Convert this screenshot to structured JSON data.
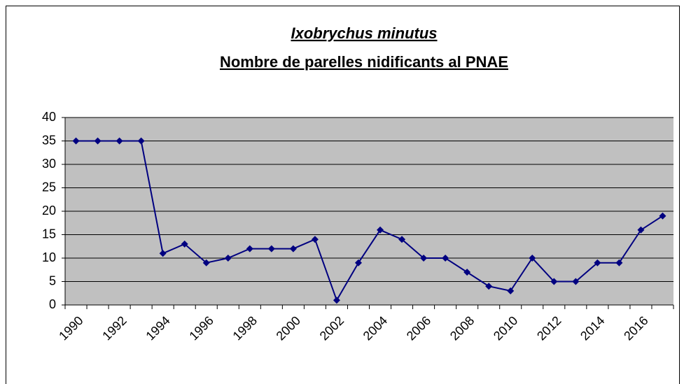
{
  "chart_data": {
    "type": "line",
    "title": "Ixobrychus minutus",
    "subtitle": "Nombre de parelles nidificants al PNAE",
    "categories": [
      "1990",
      null,
      "1992",
      null,
      "1994",
      null,
      "1996",
      null,
      "1998",
      null,
      "2000",
      null,
      "2002",
      null,
      "2004",
      null,
      "2006",
      null,
      "2008",
      null,
      "2010",
      null,
      "2012",
      null,
      "2014",
      null,
      "2016",
      null
    ],
    "series": [
      {
        "name": "Ixobrychus minutus",
        "color": "#000080",
        "values": [
          35,
          35,
          35,
          35,
          11,
          13,
          9,
          10,
          12,
          12,
          12,
          14,
          1,
          9,
          16,
          14,
          10,
          10,
          7,
          4,
          3,
          10,
          5,
          5,
          9,
          9,
          16,
          19
        ]
      }
    ],
    "ylim": [
      0,
      40
    ],
    "yticks": [
      0,
      5,
      10,
      15,
      20,
      25,
      30,
      35,
      40
    ],
    "grid": true
  }
}
